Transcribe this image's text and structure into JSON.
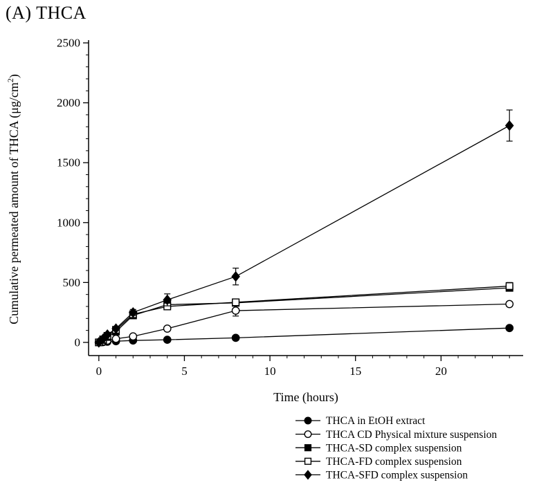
{
  "title": "(A) THCA",
  "chart_data": {
    "type": "line",
    "title": "(A) THCA",
    "xlabel": "Time (hours)",
    "ylabel_prefix": "Cumulative permeated amount of THCA (μg/cm",
    "ylabel_sup": "2",
    "ylabel_suffix": ")",
    "xlim": [
      -0.6,
      24.8
    ],
    "ylim": [
      -110,
      2500
    ],
    "xticks": [
      0,
      5,
      10,
      15,
      20
    ],
    "yticks": [
      0,
      500,
      1000,
      1500,
      2000,
      2500
    ],
    "x_minor_step": 1,
    "y_minor_step": 100,
    "grid": false,
    "legend_position": "bottom-right",
    "x": [
      0,
      0.25,
      0.5,
      1,
      2,
      4,
      8,
      24
    ],
    "series": [
      {
        "name": "THCA in EtOH extract",
        "marker": "circle",
        "filled": true,
        "values": [
          0,
          3,
          6,
          10,
          16,
          22,
          38,
          120
        ],
        "errors": [
          0,
          0,
          0,
          0,
          0,
          0,
          8,
          15
        ]
      },
      {
        "name": "THCA CD Physical mixture suspension",
        "marker": "circle",
        "filled": false,
        "values": [
          0,
          8,
          15,
          30,
          50,
          115,
          265,
          320
        ],
        "errors": [
          0,
          0,
          0,
          0,
          8,
          12,
          45,
          20
        ]
      },
      {
        "name": "THCA-SD complex suspension",
        "marker": "square",
        "filled": true,
        "values": [
          0,
          20,
          45,
          90,
          225,
          315,
          330,
          455
        ],
        "errors": [
          0,
          0,
          0,
          0,
          0,
          0,
          0,
          0
        ]
      },
      {
        "name": "THCA-FD complex suspension",
        "marker": "square",
        "filled": false,
        "values": [
          0,
          25,
          55,
          105,
          235,
          300,
          335,
          470
        ],
        "errors": [
          0,
          0,
          0,
          10,
          15,
          20,
          25,
          30
        ]
      },
      {
        "name": "THCA-SFD complex suspension",
        "marker": "diamond",
        "filled": true,
        "values": [
          0,
          30,
          65,
          115,
          250,
          355,
          550,
          1810
        ],
        "errors": [
          0,
          0,
          0,
          12,
          25,
          50,
          70,
          130
        ]
      }
    ]
  }
}
